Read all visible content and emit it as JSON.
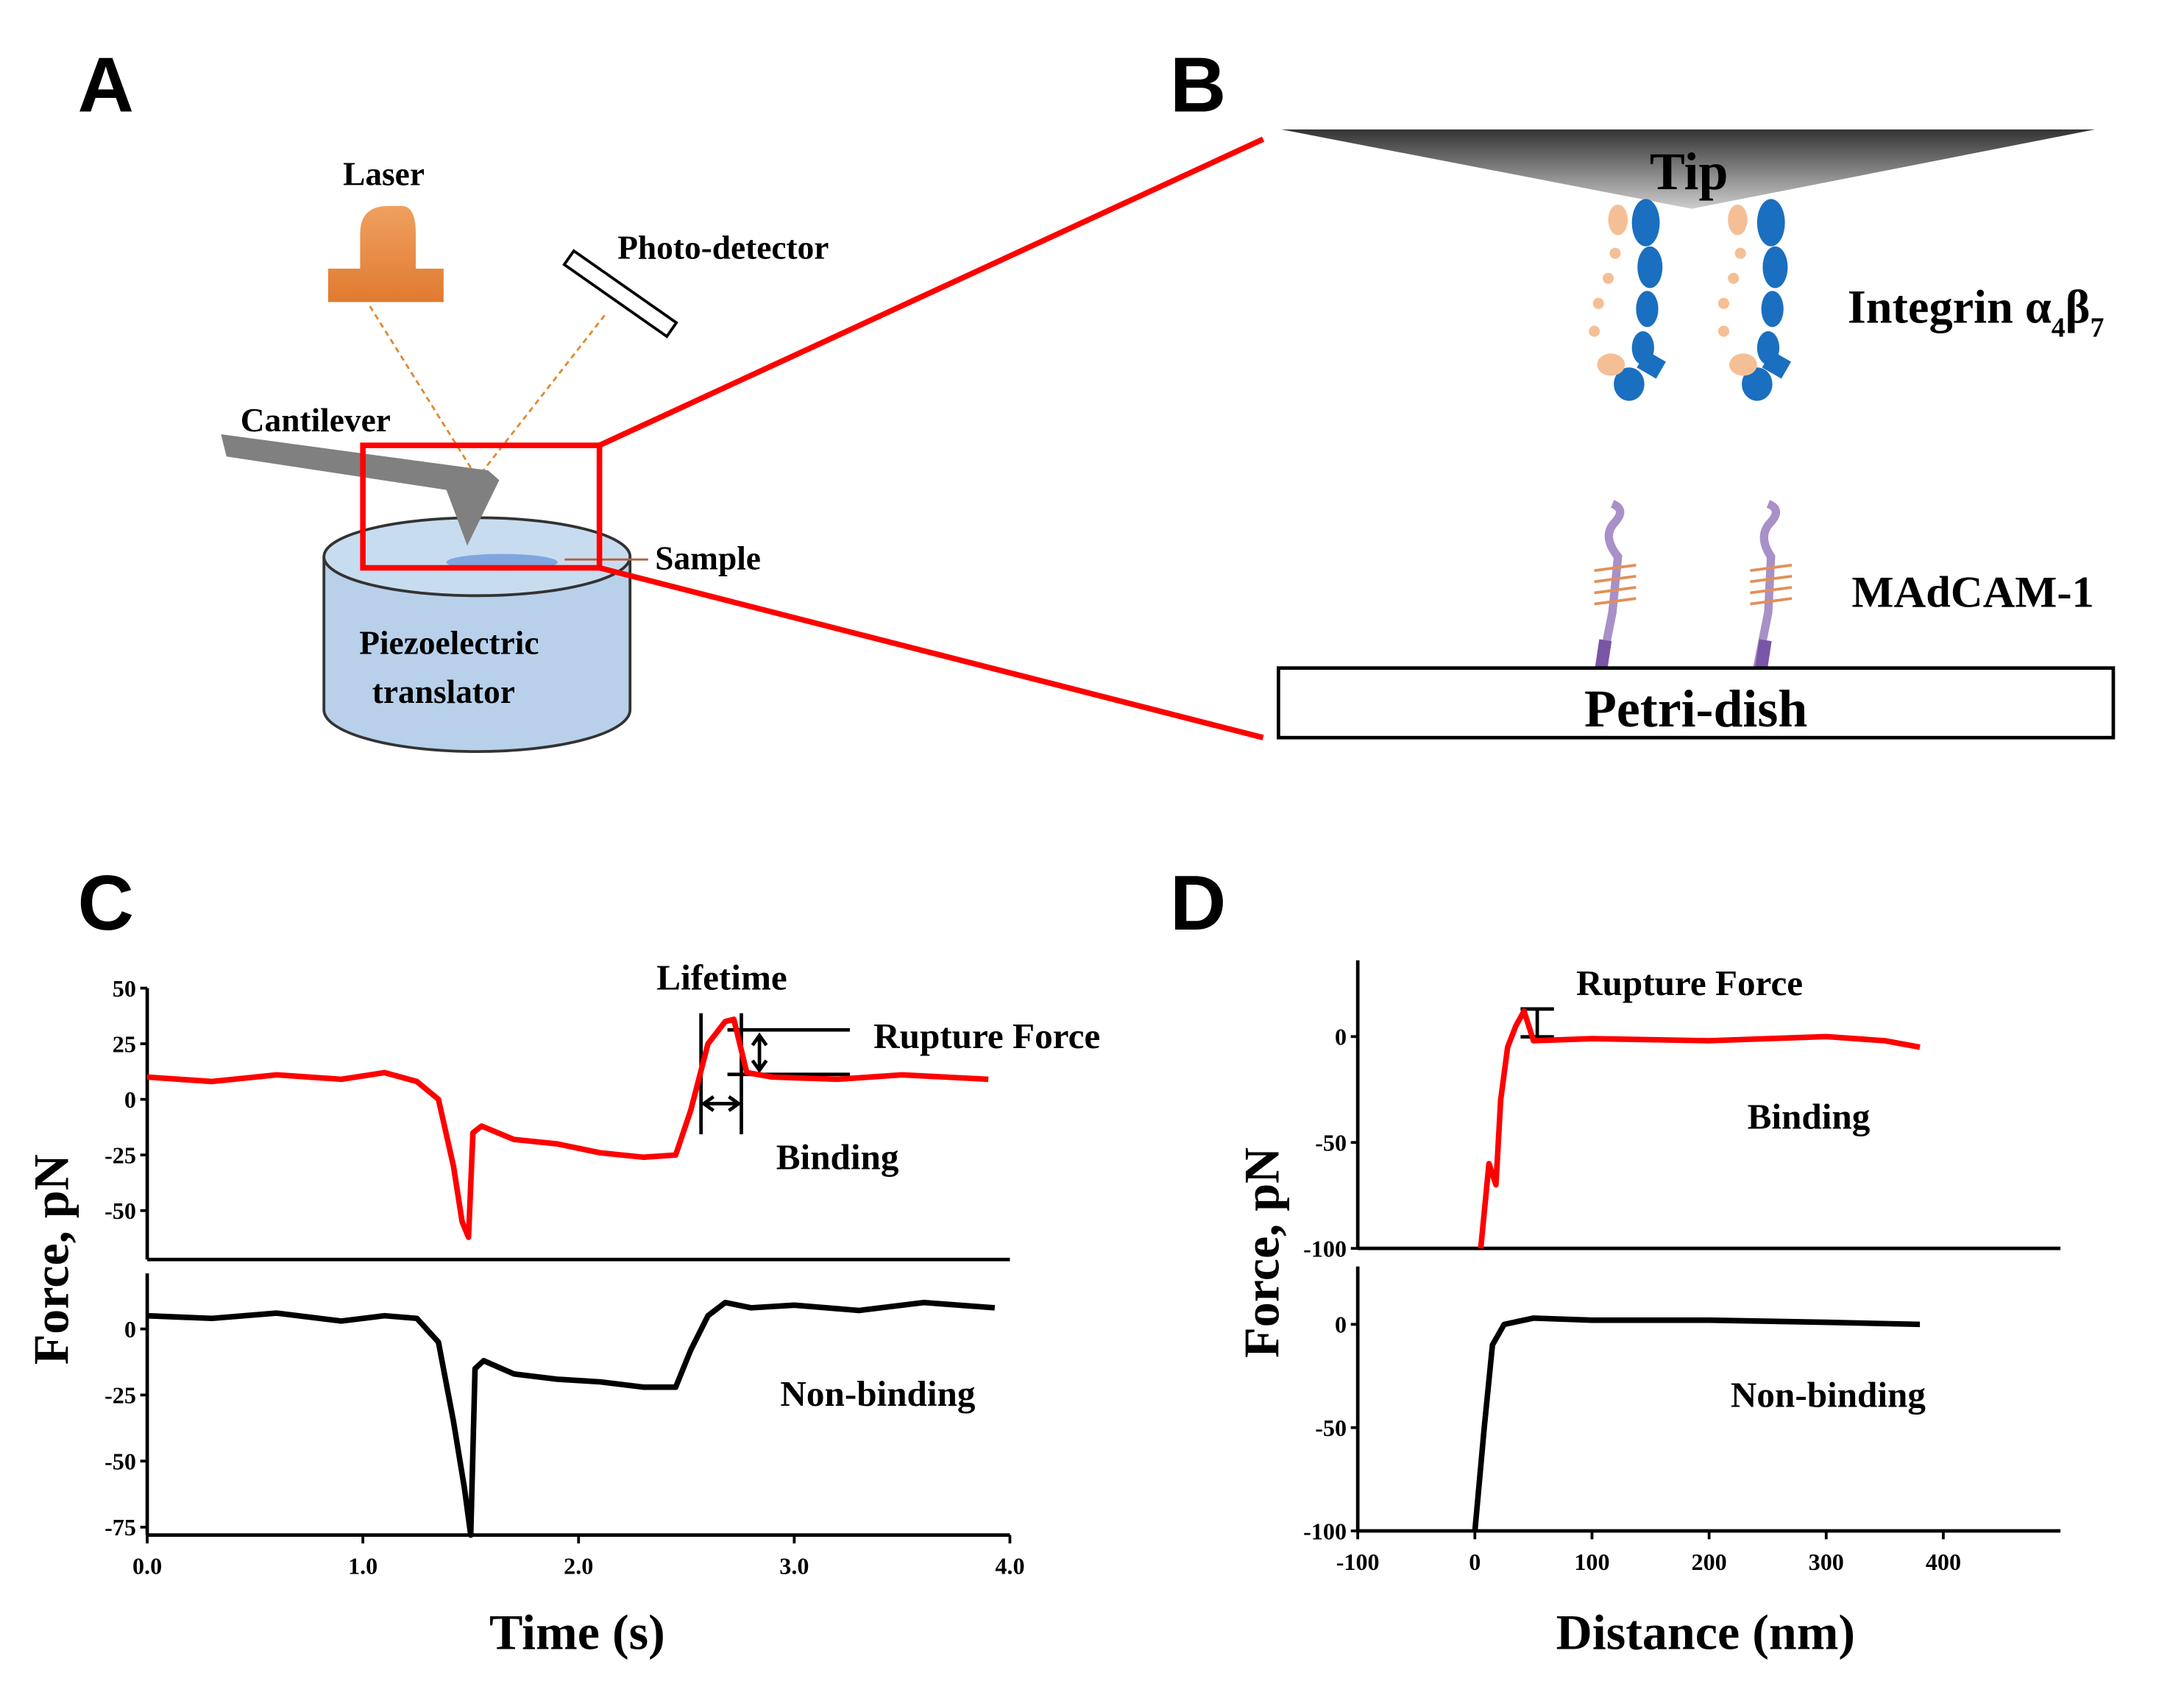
{
  "panels": {
    "A": {
      "label": "A",
      "laser": "Laser",
      "photodetector": "Photo-detector",
      "cantilever": "Cantilever",
      "sample": "Sample",
      "piezo_line1": "Piezoelectric",
      "piezo_line2": "translator"
    },
    "B": {
      "label": "B",
      "tip": "Tip",
      "integrin": {
        "base": "Integrin α",
        "sub1": "4",
        "mid": "β",
        "sub2": "7"
      },
      "madcam": "MAdCAM-1",
      "dish": "Petri-dish"
    }
  },
  "chart_data": [
    {
      "type": "line",
      "panel_label": "C",
      "x_label": "Time (s)",
      "y_label": "Force, pN",
      "xlim": [
        0,
        4
      ],
      "xticks": [
        {
          "value": 0,
          "label": "0.0"
        },
        {
          "value": 1,
          "label": "1.0"
        },
        {
          "value": 2,
          "label": "2.0"
        },
        {
          "value": 3,
          "label": "3.0"
        },
        {
          "value": 4,
          "label": "4.0"
        }
      ],
      "subplots": [
        {
          "ylim": [
            -72,
            50
          ],
          "yticks": [
            50,
            25,
            0,
            -25,
            -50
          ],
          "annotations": [
            "Lifetime",
            "Rupture Force",
            "Binding"
          ],
          "series": [
            {
              "color": "#ff0000",
              "x": [
                0,
                0.3,
                0.6,
                0.9,
                1.1,
                1.25,
                1.35,
                1.42,
                1.46,
                1.49,
                1.51,
                1.55,
                1.7,
                1.9,
                2.1,
                2.3,
                2.45,
                2.52,
                2.6,
                2.68,
                2.72,
                2.78,
                2.9,
                3.2,
                3.5,
                3.9
              ],
              "values": [
                10,
                8,
                11,
                9,
                12,
                8,
                0,
                -30,
                -55,
                -62,
                -15,
                -12,
                -18,
                -20,
                -24,
                -26,
                -25,
                -5,
                25,
                35,
                36,
                12,
                10,
                9,
                11,
                9
              ]
            }
          ]
        },
        {
          "ylim": [
            -78,
            21
          ],
          "yticks": [
            0,
            -25,
            -50,
            -75
          ],
          "annotations": [
            "Non-binding"
          ],
          "series": [
            {
              "color": "#000000",
              "x": [
                0,
                0.3,
                0.6,
                0.9,
                1.1,
                1.25,
                1.35,
                1.42,
                1.47,
                1.5,
                1.52,
                1.56,
                1.7,
                1.9,
                2.1,
                2.3,
                2.45,
                2.52,
                2.6,
                2.68,
                2.8,
                3.0,
                3.3,
                3.6,
                3.93
              ],
              "values": [
                5,
                4,
                6,
                3,
                5,
                4,
                -5,
                -35,
                -60,
                -78,
                -15,
                -12,
                -17,
                -19,
                -20,
                -22,
                -22,
                -8,
                5,
                10,
                8,
                9,
                7,
                10,
                8
              ]
            }
          ]
        }
      ]
    },
    {
      "type": "line",
      "panel_label": "D",
      "x_label": "Distance (nm)",
      "y_label": "Force, pN",
      "xlim": [
        -100,
        500
      ],
      "xticks": [
        -100,
        0,
        100,
        200,
        300,
        400
      ],
      "subplots": [
        {
          "ylim": [
            -100,
            36
          ],
          "yticks": [
            0,
            -50,
            -100
          ],
          "annotations": [
            "Rupture Force",
            "Binding"
          ],
          "series": [
            {
              "color": "#ff0000",
              "x": [
                5,
                12,
                18,
                22,
                28,
                35,
                42,
                50,
                100,
                200,
                300,
                350,
                380
              ],
              "values": [
                -100,
                -60,
                -70,
                -30,
                -5,
                5,
                12,
                -2,
                -1,
                -2,
                0,
                -2,
                -5
              ]
            }
          ]
        },
        {
          "ylim": [
            -100,
            28
          ],
          "yticks": [
            0,
            -50,
            -100
          ],
          "annotations": [
            "Non-binding"
          ],
          "series": [
            {
              "color": "#000000",
              "x": [
                0,
                8,
                15,
                25,
                50,
                100,
                200,
                300,
                380
              ],
              "values": [
                -100,
                -50,
                -10,
                0,
                3,
                2,
                2,
                1,
                0
              ]
            }
          ]
        }
      ]
    }
  ]
}
